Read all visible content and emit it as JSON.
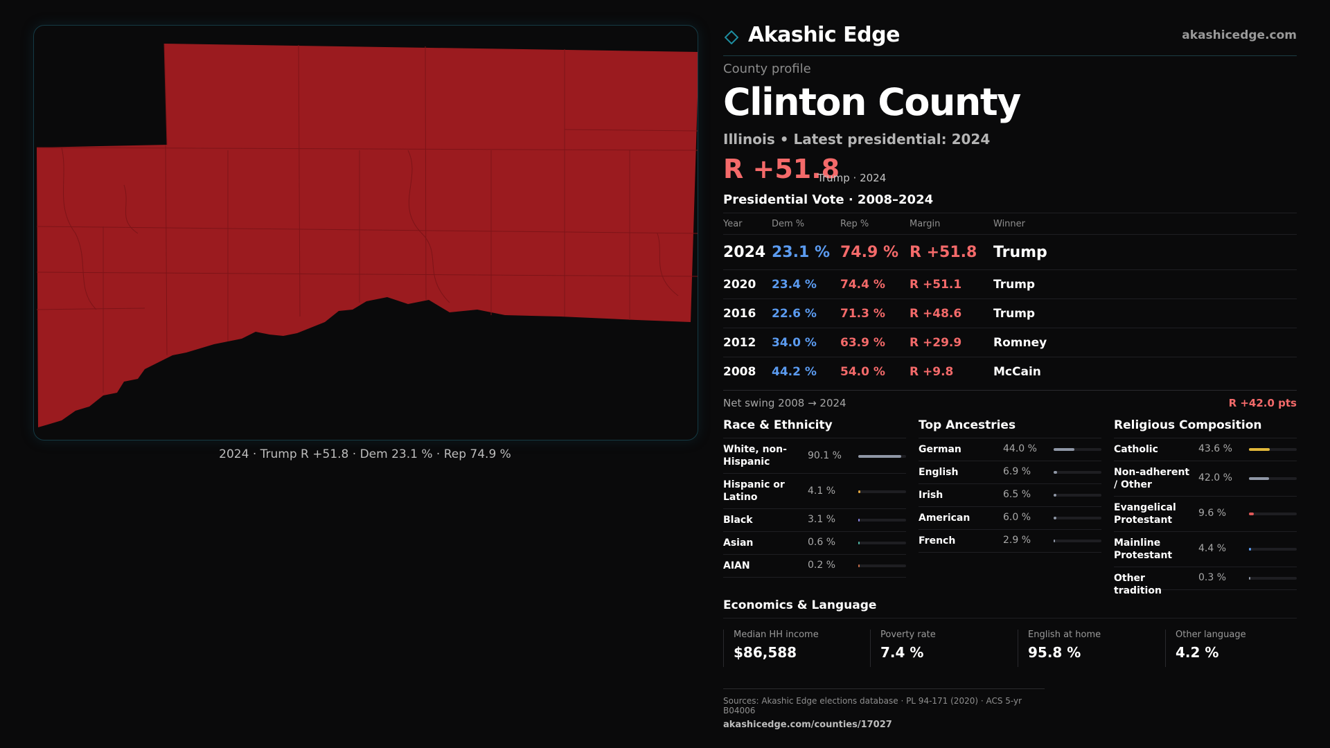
{
  "map": {
    "caption": "2024 · Trump R +51.8 · Dem 23.1 % · Rep 74.9 %",
    "fill_color": "#9b1b1f",
    "border_color": "#153a44"
  },
  "header": {
    "brand_name": "Akashic Edge",
    "brand_icon": "diamond-icon",
    "url": "akashicedge.com"
  },
  "profile": {
    "label": "County profile",
    "county": "Clinton County",
    "subtitle": "Illinois • Latest presidential: 2024",
    "margin": "R +51.8",
    "margin_note": "Trump · 2024"
  },
  "vote_table": {
    "title": "Presidential Vote · 2008–2024",
    "headers": {
      "year": "Year",
      "dem": "Dem %",
      "rep": "Rep %",
      "margin": "Margin",
      "winner": "Winner"
    },
    "rows": [
      {
        "year": "2024",
        "dem": "23.1 %",
        "rep": "74.9 %",
        "margin": "R +51.8",
        "winner": "Trump"
      },
      {
        "year": "2020",
        "dem": "23.4 %",
        "rep": "74.4 %",
        "margin": "R +51.1",
        "winner": "Trump"
      },
      {
        "year": "2016",
        "dem": "22.6 %",
        "rep": "71.3 %",
        "margin": "R +48.6",
        "winner": "Trump"
      },
      {
        "year": "2012",
        "dem": "34.0 %",
        "rep": "63.9 %",
        "margin": "R +29.9",
        "winner": "Romney"
      },
      {
        "year": "2008",
        "dem": "44.2 %",
        "rep": "54.0 %",
        "margin": "R +9.8",
        "winner": "McCain"
      }
    ],
    "swing_label": "Net swing 2008 → 2024",
    "swing_value": "R +42.0 pts"
  },
  "demographics": {
    "race": {
      "title": "Race & Ethnicity",
      "items": [
        {
          "label": "White, non-Hispanic",
          "value": "90.1 %",
          "pct": 90.1,
          "color": "#8f97a6"
        },
        {
          "label": "Hispanic or Latino",
          "value": "4.1 %",
          "pct": 4.1,
          "color": "#e2a640"
        },
        {
          "label": "Black",
          "value": "3.1 %",
          "pct": 3.1,
          "color": "#8c86e8"
        },
        {
          "label": "Asian",
          "value": "0.6 %",
          "pct": 0.6,
          "color": "#4fb8a6"
        },
        {
          "label": "AIAN",
          "value": "0.2 %",
          "pct": 0.2,
          "color": "#c46d4a"
        }
      ]
    },
    "ancestries": {
      "title": "Top Ancestries",
      "items": [
        {
          "label": "German",
          "value": "44.0 %",
          "pct": 44.0,
          "color": "#8f97a6"
        },
        {
          "label": "English",
          "value": "6.9 %",
          "pct": 6.9,
          "color": "#8f97a6"
        },
        {
          "label": "Irish",
          "value": "6.5 %",
          "pct": 6.5,
          "color": "#8f97a6"
        },
        {
          "label": "American",
          "value": "6.0 %",
          "pct": 6.0,
          "color": "#8f97a6"
        },
        {
          "label": "French",
          "value": "2.9 %",
          "pct": 2.9,
          "color": "#8f97a6"
        }
      ]
    },
    "religion": {
      "title": "Religious Composition",
      "items": [
        {
          "label": "Catholic",
          "value": "43.6 %",
          "pct": 43.6,
          "color": "#e2b83a"
        },
        {
          "label": "Non-adherent / Other",
          "value": "42.0 %",
          "pct": 42.0,
          "color": "#8f97a6"
        },
        {
          "label": "Evangelical Protestant",
          "value": "9.6 %",
          "pct": 9.6,
          "color": "#e05858"
        },
        {
          "label": "Mainline Protestant",
          "value": "4.4 %",
          "pct": 4.4,
          "color": "#5b9bf0"
        },
        {
          "label": "Other tradition",
          "value": "0.3 %",
          "pct": 0.3,
          "color": "#8f97a6"
        }
      ]
    }
  },
  "economics": {
    "title": "Economics & Language",
    "cards": [
      {
        "label": "Median HH income",
        "value": "$86,588"
      },
      {
        "label": "Poverty rate",
        "value": "7.4 %"
      },
      {
        "label": "English at home",
        "value": "95.8 %"
      },
      {
        "label": "Other language",
        "value": "4.2 %"
      }
    ]
  },
  "sources": {
    "text": "Sources: Akashic Edge elections database · PL 94-171 (2020) · ACS 5-yr B04006",
    "url": "akashicedge.com/counties/17027"
  }
}
